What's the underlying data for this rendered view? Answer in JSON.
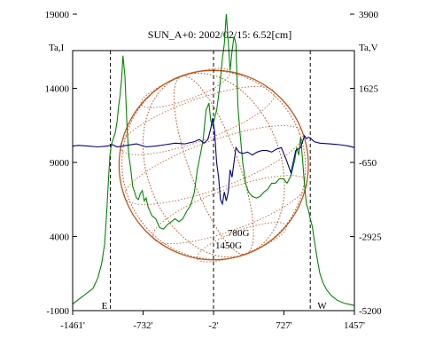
{
  "chart_data": {
    "type": "line",
    "title": "SUN_A+0: 2002/02/15: 6.52[cm]",
    "left_axis": {
      "label": "Ta,I",
      "range": [
        -1000,
        19000
      ],
      "ticks": [
        -1000,
        4000,
        9000,
        14000,
        19000
      ],
      "tick_labels": [
        "-1000",
        "4000",
        "9000",
        "14000",
        "19000"
      ]
    },
    "right_axis": {
      "label": "Ta,V",
      "ticks": [
        -5200,
        -2925,
        -650,
        1625,
        3900
      ],
      "tick_labels": [
        "-5200",
        "-2925",
        "-650",
        "1625",
        "3900"
      ]
    },
    "x_axis": {
      "range": [
        -1461,
        1457
      ],
      "ticks": [
        -1461,
        -732,
        -2,
        727,
        1457
      ],
      "tick_labels": [
        "-1461'",
        "-732'",
        "-2'",
        "727'",
        "1457'"
      ]
    },
    "markers": [
      {
        "x": -1070,
        "label": "E"
      },
      {
        "x": -2,
        "label": ""
      },
      {
        "x": 1000,
        "label": "W"
      }
    ],
    "annotations": [
      "780G",
      "1450G"
    ],
    "disk": {
      "radius": 980,
      "color": "#c0521c"
    },
    "series": [
      {
        "axis": "left",
        "color": "#008800",
        "x": [
          -1461,
          -1350,
          -1250,
          -1200,
          -1160,
          -1130,
          -1110,
          -1090,
          -1075,
          -1060,
          -1040,
          -1020,
          -1000,
          -985,
          -970,
          -955,
          -940,
          -920,
          -900,
          -880,
          -860,
          -840,
          -820,
          -800,
          -780,
          -760,
          -740,
          -720,
          -700,
          -680,
          -640,
          -600,
          -560,
          -520,
          -480,
          -440,
          -400,
          -360,
          -320,
          -280,
          -240,
          -200,
          -170,
          -140,
          -110,
          -80,
          -50,
          -30,
          -10,
          10,
          30,
          60,
          90,
          110,
          130,
          150,
          170,
          190,
          210,
          230,
          250,
          270,
          300,
          330,
          360,
          400,
          440,
          480,
          520,
          560,
          600,
          640,
          680,
          720,
          760,
          800,
          840,
          860,
          880,
          900,
          920,
          940,
          960,
          980,
          1000,
          1020,
          1040,
          1060,
          1080,
          1100,
          1130,
          1170,
          1220,
          1280,
          1350,
          1420,
          1457
        ],
        "y": [
          -550,
          0,
          500,
          1200,
          2200,
          3500,
          5500,
          7800,
          9500,
          10200,
          10600,
          11000,
          11800,
          12800,
          13500,
          14500,
          16200,
          14800,
          11800,
          9500,
          8600,
          7400,
          7000,
          6600,
          6500,
          6900,
          7100,
          6400,
          6600,
          6000,
          5400,
          5200,
          4600,
          4500,
          4800,
          5000,
          5200,
          5000,
          5200,
          5700,
          6100,
          7000,
          8500,
          9500,
          10500,
          12500,
          13000,
          11800,
          11500,
          12000,
          12500,
          14000,
          16000,
          17000,
          19000,
          17200,
          15200,
          16500,
          17500,
          17000,
          12800,
          11200,
          9000,
          7600,
          7000,
          6700,
          6600,
          6700,
          7000,
          7200,
          7600,
          7600,
          7900,
          7900,
          7600,
          8100,
          9200,
          10000,
          9500,
          10700,
          9200,
          7500,
          6200,
          5800,
          5200,
          4700,
          3800,
          3000,
          2200,
          1500,
          900,
          400,
          0,
          -300,
          -500,
          -600,
          -650
        ]
      },
      {
        "axis": "left",
        "color": "#000088",
        "x": [
          -1461,
          -1400,
          -1300,
          -1200,
          -1100,
          -1050,
          -1000,
          -900,
          -800,
          -700,
          -600,
          -500,
          -400,
          -300,
          -200,
          -150,
          -100,
          -60,
          -30,
          -10,
          10,
          30,
          50,
          70,
          90,
          110,
          130,
          150,
          170,
          190,
          210,
          230,
          260,
          300,
          350,
          400,
          450,
          500,
          550,
          600,
          650,
          700,
          750,
          800,
          850,
          900,
          940,
          960,
          980,
          1000,
          1040,
          1100,
          1200,
          1300,
          1400,
          1457
        ],
        "y": [
          10100,
          10150,
          10100,
          10050,
          10100,
          10200,
          10050,
          10150,
          10250,
          10050,
          10100,
          10200,
          10300,
          10250,
          10400,
          10550,
          10300,
          10550,
          11300,
          12000,
          11000,
          9000,
          8000,
          6500,
          6200,
          7000,
          6400,
          7000,
          8500,
          8000,
          9000,
          10000,
          9700,
          9600,
          9700,
          9500,
          9700,
          9800,
          9800,
          9700,
          9900,
          10000,
          9200,
          8300,
          9800,
          10000,
          10800,
          10600,
          10700,
          10650,
          10400,
          10300,
          10250,
          10200,
          10100,
          10000
        ]
      }
    ]
  }
}
